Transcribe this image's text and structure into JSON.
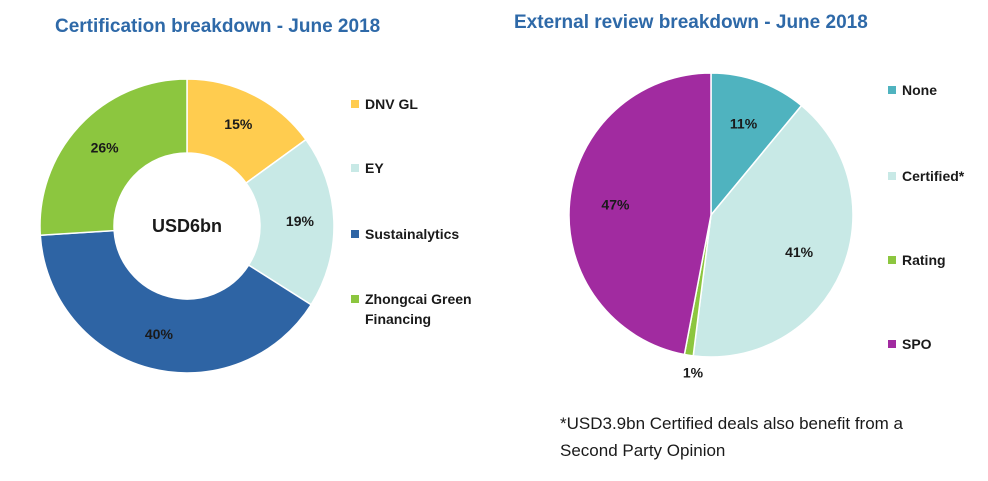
{
  "chart_data": [
    {
      "type": "pie",
      "variant": "donut",
      "title": "Certification breakdown - June 2018",
      "center_label": "USD6bn",
      "legend_placement": "right",
      "categories": [
        "DNV GL",
        "EY",
        "Sustainalytics",
        "Zhongcai Green Financing"
      ],
      "values": [
        15,
        19,
        40,
        26
      ],
      "value_labels": [
        "15%",
        "19%",
        "40%",
        "26%"
      ],
      "colors": [
        "#ffcc4f",
        "#c8e9e6",
        "#2e64a4",
        "#8cc63f"
      ]
    },
    {
      "type": "pie",
      "title": "External review breakdown - June 2018",
      "legend_placement": "right",
      "categories": [
        "None",
        "Certified*",
        "Rating",
        "SPO"
      ],
      "values": [
        11,
        41,
        1,
        47
      ],
      "value_labels": [
        "11%",
        "41%",
        "1%",
        "47%"
      ],
      "colors": [
        "#4fb3bf",
        "#c8e9e6",
        "#8cc63f",
        "#a12ba0"
      ]
    }
  ],
  "footnote": "*USD3.9bn Certified deals also benefit from a Second Party Opinion"
}
